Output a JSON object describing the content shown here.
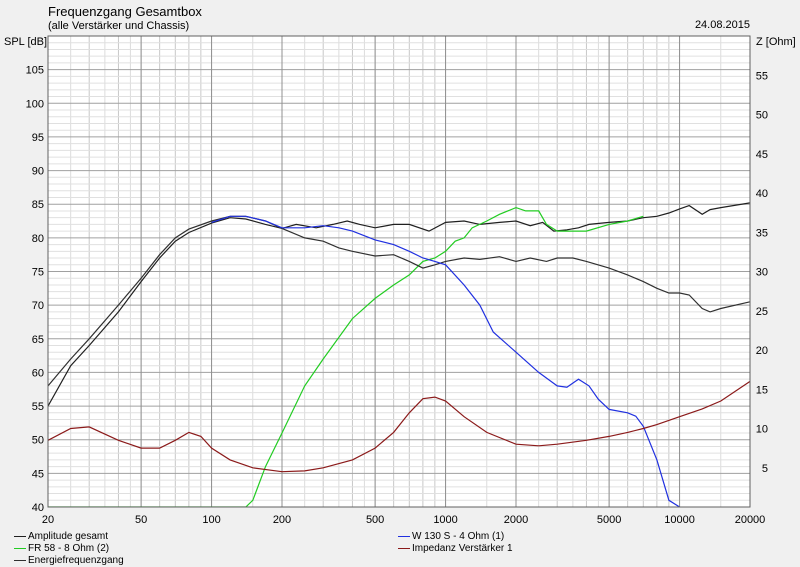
{
  "header": {
    "title": "Frequenzgang Gesamtbox",
    "subtitle": "(alle Verstärker und Chassis)",
    "date": "24.08.2015"
  },
  "chart_data": {
    "type": "line",
    "title": "Frequenzgang Gesamtbox",
    "subtitle": "(alle Verstärker und Chassis)",
    "xlabel": "",
    "ylabel": "SPL [dB]",
    "y2label": "Z [Ohm]",
    "xscale": "log",
    "xlim": [
      20,
      20000
    ],
    "ylim": [
      40,
      110
    ],
    "y2lim": [
      0,
      60
    ],
    "grid": true,
    "legend_placement": "bottom",
    "x_ticks": [
      {
        "v": 20,
        "label": "20"
      },
      {
        "v": 50,
        "label": "50"
      },
      {
        "v": 100,
        "label": "100"
      },
      {
        "v": 200,
        "label": "200"
      },
      {
        "v": 500,
        "label": "500"
      },
      {
        "v": 1000,
        "label": "1000"
      },
      {
        "v": 2000,
        "label": "2000"
      },
      {
        "v": 5000,
        "label": "5000"
      },
      {
        "v": 10000,
        "label": "10000"
      },
      {
        "v": 20000,
        "label": "20000"
      }
    ],
    "y_ticks": [
      "40",
      "45",
      "50",
      "55",
      "60",
      "65",
      "70",
      "75",
      "80",
      "85",
      "90",
      "95",
      "100",
      "105"
    ],
    "y2_ticks": [
      "5",
      "10",
      "15",
      "20",
      "25",
      "30",
      "35",
      "40",
      "45",
      "50",
      "55"
    ],
    "series": [
      {
        "name": "Amplitude gesamt",
        "color": "#202020",
        "axis": "left",
        "points": [
          [
            20,
            55
          ],
          [
            25,
            61
          ],
          [
            30,
            64
          ],
          [
            40,
            69
          ],
          [
            50,
            73.5
          ],
          [
            60,
            77
          ],
          [
            70,
            79.5
          ],
          [
            80,
            80.8
          ],
          [
            100,
            82.2
          ],
          [
            120,
            83
          ],
          [
            140,
            82.8
          ],
          [
            170,
            82
          ],
          [
            200,
            81.4
          ],
          [
            230,
            82
          ],
          [
            280,
            81.5
          ],
          [
            330,
            82
          ],
          [
            380,
            82.5
          ],
          [
            430,
            82
          ],
          [
            500,
            81.5
          ],
          [
            600,
            82
          ],
          [
            700,
            82
          ],
          [
            850,
            81
          ],
          [
            1000,
            82.3
          ],
          [
            1200,
            82.5
          ],
          [
            1400,
            82
          ],
          [
            1700,
            82.3
          ],
          [
            2000,
            82.5
          ],
          [
            2300,
            81.8
          ],
          [
            2600,
            82.3
          ],
          [
            2900,
            81
          ],
          [
            3300,
            81.2
          ],
          [
            3700,
            81.5
          ],
          [
            4100,
            82
          ],
          [
            5000,
            82.3
          ],
          [
            6000,
            82.5
          ],
          [
            7000,
            83
          ],
          [
            8000,
            83.2
          ],
          [
            9000,
            83.7
          ],
          [
            10000,
            84.3
          ],
          [
            11000,
            84.8
          ],
          [
            12500,
            83.5
          ],
          [
            13500,
            84.2
          ],
          [
            15000,
            84.5
          ],
          [
            20000,
            85.2
          ]
        ]
      },
      {
        "name": "FR 58 - 8 Ohm (2)",
        "color": "#22cc22",
        "axis": "left",
        "points": [
          [
            20,
            40
          ],
          [
            140,
            40
          ],
          [
            150,
            41
          ],
          [
            170,
            46
          ],
          [
            200,
            51
          ],
          [
            250,
            58
          ],
          [
            300,
            62
          ],
          [
            400,
            68
          ],
          [
            500,
            71
          ],
          [
            600,
            73
          ],
          [
            700,
            74.5
          ],
          [
            800,
            76.5
          ],
          [
            900,
            77
          ],
          [
            1000,
            78
          ],
          [
            1100,
            79.5
          ],
          [
            1200,
            80
          ],
          [
            1300,
            81.5
          ],
          [
            1500,
            82.5
          ],
          [
            1700,
            83.5
          ],
          [
            2000,
            84.5
          ],
          [
            2200,
            84
          ],
          [
            2500,
            84
          ],
          [
            2700,
            82
          ],
          [
            3000,
            81
          ],
          [
            3500,
            81
          ],
          [
            4000,
            81
          ],
          [
            5000,
            82
          ],
          [
            6000,
            82.5
          ],
          [
            7000,
            83.2
          ]
        ]
      },
      {
        "name": "Energiefrequenzgang",
        "color": "#303030",
        "axis": "left",
        "points": [
          [
            20,
            58
          ],
          [
            25,
            62
          ],
          [
            30,
            65
          ],
          [
            40,
            70
          ],
          [
            50,
            74
          ],
          [
            60,
            77.5
          ],
          [
            70,
            80
          ],
          [
            80,
            81.3
          ],
          [
            100,
            82.5
          ],
          [
            120,
            83.2
          ],
          [
            140,
            83.2
          ],
          [
            170,
            82.5
          ],
          [
            200,
            81.4
          ],
          [
            250,
            80
          ],
          [
            300,
            79.5
          ],
          [
            350,
            78.5
          ],
          [
            400,
            78
          ],
          [
            500,
            77.3
          ],
          [
            600,
            77.5
          ],
          [
            700,
            76.5
          ],
          [
            800,
            75.5
          ],
          [
            900,
            76
          ],
          [
            1000,
            76.5
          ],
          [
            1200,
            77
          ],
          [
            1400,
            76.8
          ],
          [
            1700,
            77.2
          ],
          [
            2000,
            76.5
          ],
          [
            2300,
            77
          ],
          [
            2700,
            76.5
          ],
          [
            3000,
            77
          ],
          [
            3500,
            77
          ],
          [
            4000,
            76.5
          ],
          [
            5000,
            75.5
          ],
          [
            6000,
            74.5
          ],
          [
            7000,
            73.5
          ],
          [
            8000,
            72.5
          ],
          [
            9000,
            71.8
          ],
          [
            10000,
            71.8
          ],
          [
            11000,
            71.5
          ],
          [
            12500,
            69.5
          ],
          [
            13500,
            69
          ],
          [
            15000,
            69.5
          ],
          [
            20000,
            70.5
          ]
        ]
      },
      {
        "name": "W 130 S - 4 Ohm (1)",
        "color": "#2030e0",
        "axis": "left",
        "points": [
          [
            100,
            82.3
          ],
          [
            120,
            83.2
          ],
          [
            140,
            83.2
          ],
          [
            170,
            82.5
          ],
          [
            200,
            81.5
          ],
          [
            250,
            81.5
          ],
          [
            300,
            81.8
          ],
          [
            350,
            81.5
          ],
          [
            400,
            81
          ],
          [
            500,
            79.7
          ],
          [
            600,
            79
          ],
          [
            700,
            78
          ],
          [
            800,
            77
          ],
          [
            900,
            76.5
          ],
          [
            1000,
            76
          ],
          [
            1200,
            73
          ],
          [
            1400,
            70
          ],
          [
            1600,
            66
          ],
          [
            2000,
            63
          ],
          [
            2500,
            60
          ],
          [
            3000,
            58
          ],
          [
            3300,
            57.8
          ],
          [
            3700,
            59
          ],
          [
            4100,
            58
          ],
          [
            4500,
            56
          ],
          [
            5000,
            54.5
          ],
          [
            6000,
            54
          ],
          [
            6500,
            53.5
          ],
          [
            7000,
            52
          ],
          [
            8000,
            47
          ],
          [
            9000,
            41
          ],
          [
            10000,
            40
          ]
        ]
      },
      {
        "name": "Impedanz Verstärker 1",
        "color": "#8b1a1a",
        "axis": "right",
        "points": [
          [
            20,
            8.5
          ],
          [
            25,
            10
          ],
          [
            30,
            10.2
          ],
          [
            40,
            8.5
          ],
          [
            50,
            7.5
          ],
          [
            60,
            7.5
          ],
          [
            70,
            8.5
          ],
          [
            80,
            9.5
          ],
          [
            90,
            9
          ],
          [
            100,
            7.5
          ],
          [
            120,
            6
          ],
          [
            150,
            5
          ],
          [
            200,
            4.5
          ],
          [
            250,
            4.6
          ],
          [
            300,
            5
          ],
          [
            400,
            6
          ],
          [
            500,
            7.5
          ],
          [
            600,
            9.5
          ],
          [
            700,
            12
          ],
          [
            800,
            13.8
          ],
          [
            900,
            14
          ],
          [
            1000,
            13.5
          ],
          [
            1200,
            11.5
          ],
          [
            1500,
            9.5
          ],
          [
            2000,
            8
          ],
          [
            2500,
            7.8
          ],
          [
            3000,
            8
          ],
          [
            4000,
            8.5
          ],
          [
            5000,
            9
          ],
          [
            6000,
            9.5
          ],
          [
            7000,
            10
          ],
          [
            8000,
            10.5
          ],
          [
            10000,
            11.5
          ],
          [
            12500,
            12.5
          ],
          [
            15000,
            13.5
          ],
          [
            20000,
            16
          ]
        ]
      }
    ]
  }
}
